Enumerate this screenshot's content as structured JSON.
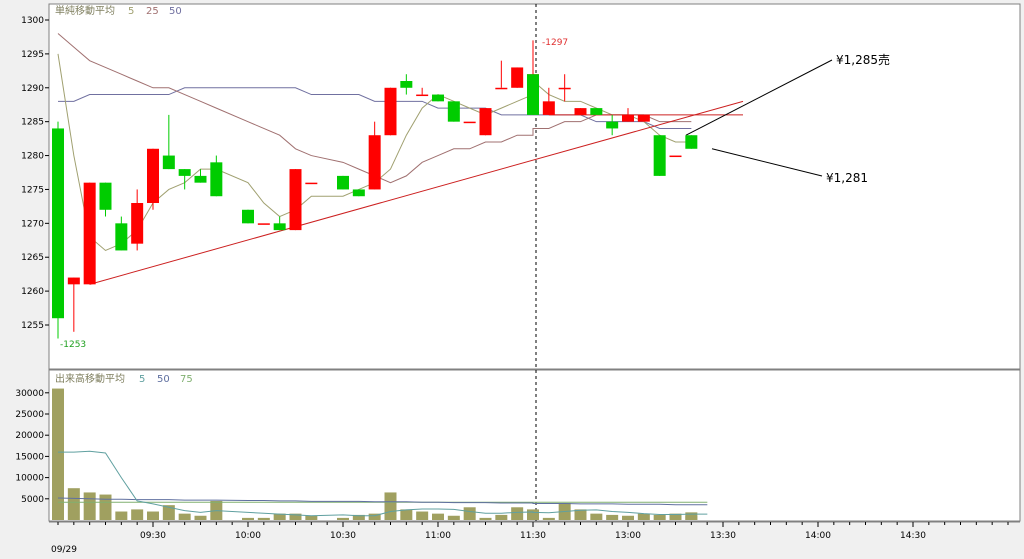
{
  "chart_data": [
    {
      "type": "candlestick",
      "title": "単純移動平均",
      "ma_periods": [
        "5",
        "25",
        "50"
      ],
      "ylim": [
        1250,
        1300
      ],
      "yticks": [
        "1255",
        "1260",
        "1265",
        "1270",
        "1275",
        "1280",
        "1285",
        "1290",
        "1295",
        "1300"
      ],
      "high_marker": "-1297",
      "low_marker": "-1253",
      "annotation_sell": "¥1,285売",
      "annotation_price": "¥1,281",
      "colors": {
        "up": "#ff0000",
        "down": "#00cc00",
        "ma5": "#a0a070",
        "ma25": "#a07070",
        "ma50": "#7070a0",
        "trend": "#cc2020"
      },
      "candles": [
        {
          "t": "09:00",
          "o": 1284,
          "h": 1285,
          "l": 1253,
          "c": 1256
        },
        {
          "t": "09:05",
          "o": 1261,
          "h": 1262,
          "l": 1254,
          "c": 1262
        },
        {
          "t": "09:10",
          "o": 1261,
          "h": 1276,
          "l": 1261,
          "c": 1276
        },
        {
          "t": "09:15",
          "o": 1276,
          "h": 1276,
          "l": 1271,
          "c": 1272
        },
        {
          "t": "09:20",
          "o": 1270,
          "h": 1271,
          "l": 1266,
          "c": 1266
        },
        {
          "t": "09:25",
          "o": 1267,
          "h": 1275,
          "l": 1266,
          "c": 1273
        },
        {
          "t": "09:30",
          "o": 1273,
          "h": 1281,
          "l": 1272,
          "c": 1281
        },
        {
          "t": "09:35",
          "o": 1280,
          "h": 1286,
          "l": 1278,
          "c": 1278
        },
        {
          "t": "09:40",
          "o": 1278,
          "h": 1278,
          "l": 1275,
          "c": 1277
        },
        {
          "t": "09:45",
          "o": 1277,
          "h": 1278,
          "l": 1276,
          "c": 1276
        },
        {
          "t": "09:50",
          "o": 1279,
          "h": 1280,
          "l": 1274,
          "c": 1274
        },
        {
          "t": "10:00",
          "o": 1272,
          "h": 1272,
          "l": 1270,
          "c": 1270
        },
        {
          "t": "10:05",
          "o": 1270,
          "h": 1270,
          "l": 1270,
          "c": 1270
        },
        {
          "t": "10:10",
          "o": 1270,
          "h": 1271,
          "l": 1269,
          "c": 1269
        },
        {
          "t": "10:15",
          "o": 1269,
          "h": 1278,
          "l": 1269,
          "c": 1278
        },
        {
          "t": "10:20",
          "o": 1276,
          "h": 1276,
          "l": 1276,
          "c": 1276
        },
        {
          "t": "10:30",
          "o": 1277,
          "h": 1277,
          "l": 1275,
          "c": 1275
        },
        {
          "t": "10:35",
          "o": 1275,
          "h": 1275,
          "l": 1274,
          "c": 1274
        },
        {
          "t": "10:40",
          "o": 1275,
          "h": 1285,
          "l": 1275,
          "c": 1283
        },
        {
          "t": "10:45",
          "o": 1283,
          "h": 1290,
          "l": 1283,
          "c": 1290
        },
        {
          "t": "10:50",
          "o": 1291,
          "h": 1292,
          "l": 1289,
          "c": 1290
        },
        {
          "t": "10:55",
          "o": 1289,
          "h": 1290,
          "l": 1289,
          "c": 1289
        },
        {
          "t": "11:00",
          "o": 1289,
          "h": 1289,
          "l": 1288,
          "c": 1288
        },
        {
          "t": "11:05",
          "o": 1288,
          "h": 1288,
          "l": 1285,
          "c": 1285
        },
        {
          "t": "11:10",
          "o": 1285,
          "h": 1285,
          "l": 1285,
          "c": 1285
        },
        {
          "t": "11:15",
          "o": 1283,
          "h": 1287,
          "l": 1283,
          "c": 1287
        },
        {
          "t": "11:20",
          "o": 1290,
          "h": 1294,
          "l": 1290,
          "c": 1290
        },
        {
          "t": "11:25",
          "o": 1290,
          "h": 1293,
          "l": 1290,
          "c": 1293
        },
        {
          "t": "11:30",
          "o": 1291,
          "h": 1297,
          "l": 1291,
          "c": 1292
        },
        {
          "t": "12:30",
          "o": 1292,
          "h": 1292,
          "l": 1286,
          "c": 1286
        },
        {
          "t": "12:35",
          "o": 1286,
          "h": 1290,
          "l": 1286,
          "c": 1288
        },
        {
          "t": "12:40",
          "o": 1290,
          "h": 1292,
          "l": 1288,
          "c": 1290
        },
        {
          "t": "12:45",
          "o": 1286,
          "h": 1287,
          "l": 1286,
          "c": 1287
        },
        {
          "t": "12:50",
          "o": 1287,
          "h": 1287,
          "l": 1286,
          "c": 1286
        },
        {
          "t": "12:55",
          "o": 1285,
          "h": 1286,
          "l": 1283,
          "c": 1284
        },
        {
          "t": "13:00",
          "o": 1285,
          "h": 1287,
          "l": 1285,
          "c": 1286
        },
        {
          "t": "13:05",
          "o": 1285,
          "h": 1286,
          "l": 1285,
          "c": 1286
        },
        {
          "t": "13:10",
          "o": 1283,
          "h": 1283,
          "l": 1277,
          "c": 1277
        },
        {
          "t": "13:15",
          "o": 1280,
          "h": 1280,
          "l": 1280,
          "c": 1280
        },
        {
          "t": "13:20",
          "o": 1283,
          "h": 1283,
          "l": 1281,
          "c": 1281
        }
      ],
      "ma5": [
        1295,
        1280,
        1268,
        1266,
        1267,
        1269,
        1273,
        1275,
        1276,
        1278,
        1278,
        1276,
        1273,
        1271,
        1272,
        1274,
        1274,
        1275,
        1276,
        1278,
        1283,
        1287,
        1289,
        1288,
        1287,
        1286,
        1287,
        1288,
        1289,
        1291,
        1289,
        1288,
        1288,
        1287,
        1286,
        1286,
        1285,
        1283,
        1282,
        1282
      ],
      "ma25": [
        1298,
        1296,
        1294,
        1293,
        1292,
        1291,
        1290,
        1290,
        1289,
        1288,
        1287,
        1285,
        1284,
        1283,
        1281,
        1280,
        1279,
        1278,
        1277,
        1276,
        1277,
        1279,
        1280,
        1281,
        1281,
        1282,
        1282,
        1283,
        1283,
        1284,
        1284,
        1285,
        1285,
        1286,
        1286,
        1286,
        1286,
        1285,
        1285,
        1285
      ],
      "ma50": [
        1288,
        1288,
        1289,
        1289,
        1289,
        1289,
        1289,
        1289,
        1290,
        1290,
        1290,
        1290,
        1290,
        1290,
        1290,
        1289,
        1289,
        1289,
        1288,
        1288,
        1288,
        1288,
        1287,
        1287,
        1287,
        1287,
        1286,
        1286,
        1286,
        1286,
        1286,
        1286,
        1286,
        1285,
        1285,
        1285,
        1285,
        1284,
        1284,
        1284
      ],
      "trendline": [
        [
          "09:10",
          1261
        ],
        [
          "13:30",
          1288
        ]
      ],
      "support_line": [
        [
          "12:35",
          1286
        ],
        [
          "13:30",
          1286
        ]
      ]
    },
    {
      "type": "bar",
      "title": "出来高移動平均",
      "ma_periods": [
        "5",
        "50",
        "75"
      ],
      "ylim": [
        0,
        32000
      ],
      "yticks": [
        "5000",
        "10000",
        "15000",
        "20000",
        "25000",
        "30000"
      ],
      "xticks": [
        "09:30",
        "10:00",
        "10:30",
        "11:00",
        "11:30",
        "13:00",
        "13:30",
        "14:00",
        "14:30"
      ],
      "date_label": "09/29",
      "colors": {
        "bar": "#a0a060",
        "ma5": "#60a0a0",
        "ma50": "#6070a0",
        "ma75": "#80b070"
      },
      "volumes": [
        31000,
        7500,
        6500,
        6000,
        2000,
        2500,
        2000,
        3500,
        1500,
        1000,
        4500,
        500,
        500,
        1500,
        1500,
        1000,
        500,
        1200,
        1500,
        6500,
        2500,
        2000,
        1500,
        1000,
        3000,
        500,
        1200,
        3000,
        2500,
        1500,
        500,
        4000,
        2500,
        1500,
        1200,
        1000,
        1500,
        1200,
        1500,
        1800,
        1000
      ],
      "ma5": [
        16000,
        16000,
        16200,
        15800,
        10000,
        4500,
        3800,
        3000,
        2200,
        1800,
        2200,
        1800,
        1600,
        1400,
        1200,
        1000,
        1200,
        1000,
        1000,
        2000,
        2400,
        2600,
        2600,
        2500,
        2000,
        1600,
        1600,
        1800,
        1900,
        1800,
        1700,
        2000,
        2300,
        2400,
        2000,
        1800,
        1500,
        1300,
        1300,
        1400,
        1400
      ],
      "ma50": [
        5200,
        5100,
        5000,
        4900,
        4900,
        4800,
        4800,
        4800,
        4700,
        4700,
        4700,
        4600,
        4600,
        4500,
        4500,
        4400,
        4400,
        4400,
        4300,
        4300,
        4300,
        4200,
        4200,
        4100,
        4100,
        4100,
        4000,
        4000,
        4000,
        3900,
        3900,
        3900,
        3800,
        3800,
        3800,
        3700,
        3700,
        3700,
        3600,
        3600,
        3600
      ],
      "ma75": [
        4200,
        4200,
        4200,
        4200,
        4200,
        4200,
        4200,
        4200,
        4200,
        4200,
        4200,
        4200,
        4200,
        4200,
        4200,
        4200,
        4200,
        4200,
        4200,
        4200,
        4200,
        4200,
        4200,
        4200,
        4200,
        4200,
        4200,
        4200,
        4200,
        4200,
        4200,
        4200,
        4200,
        4200,
        4200,
        4200,
        4200,
        4200,
        4200,
        4200,
        4200
      ]
    }
  ]
}
